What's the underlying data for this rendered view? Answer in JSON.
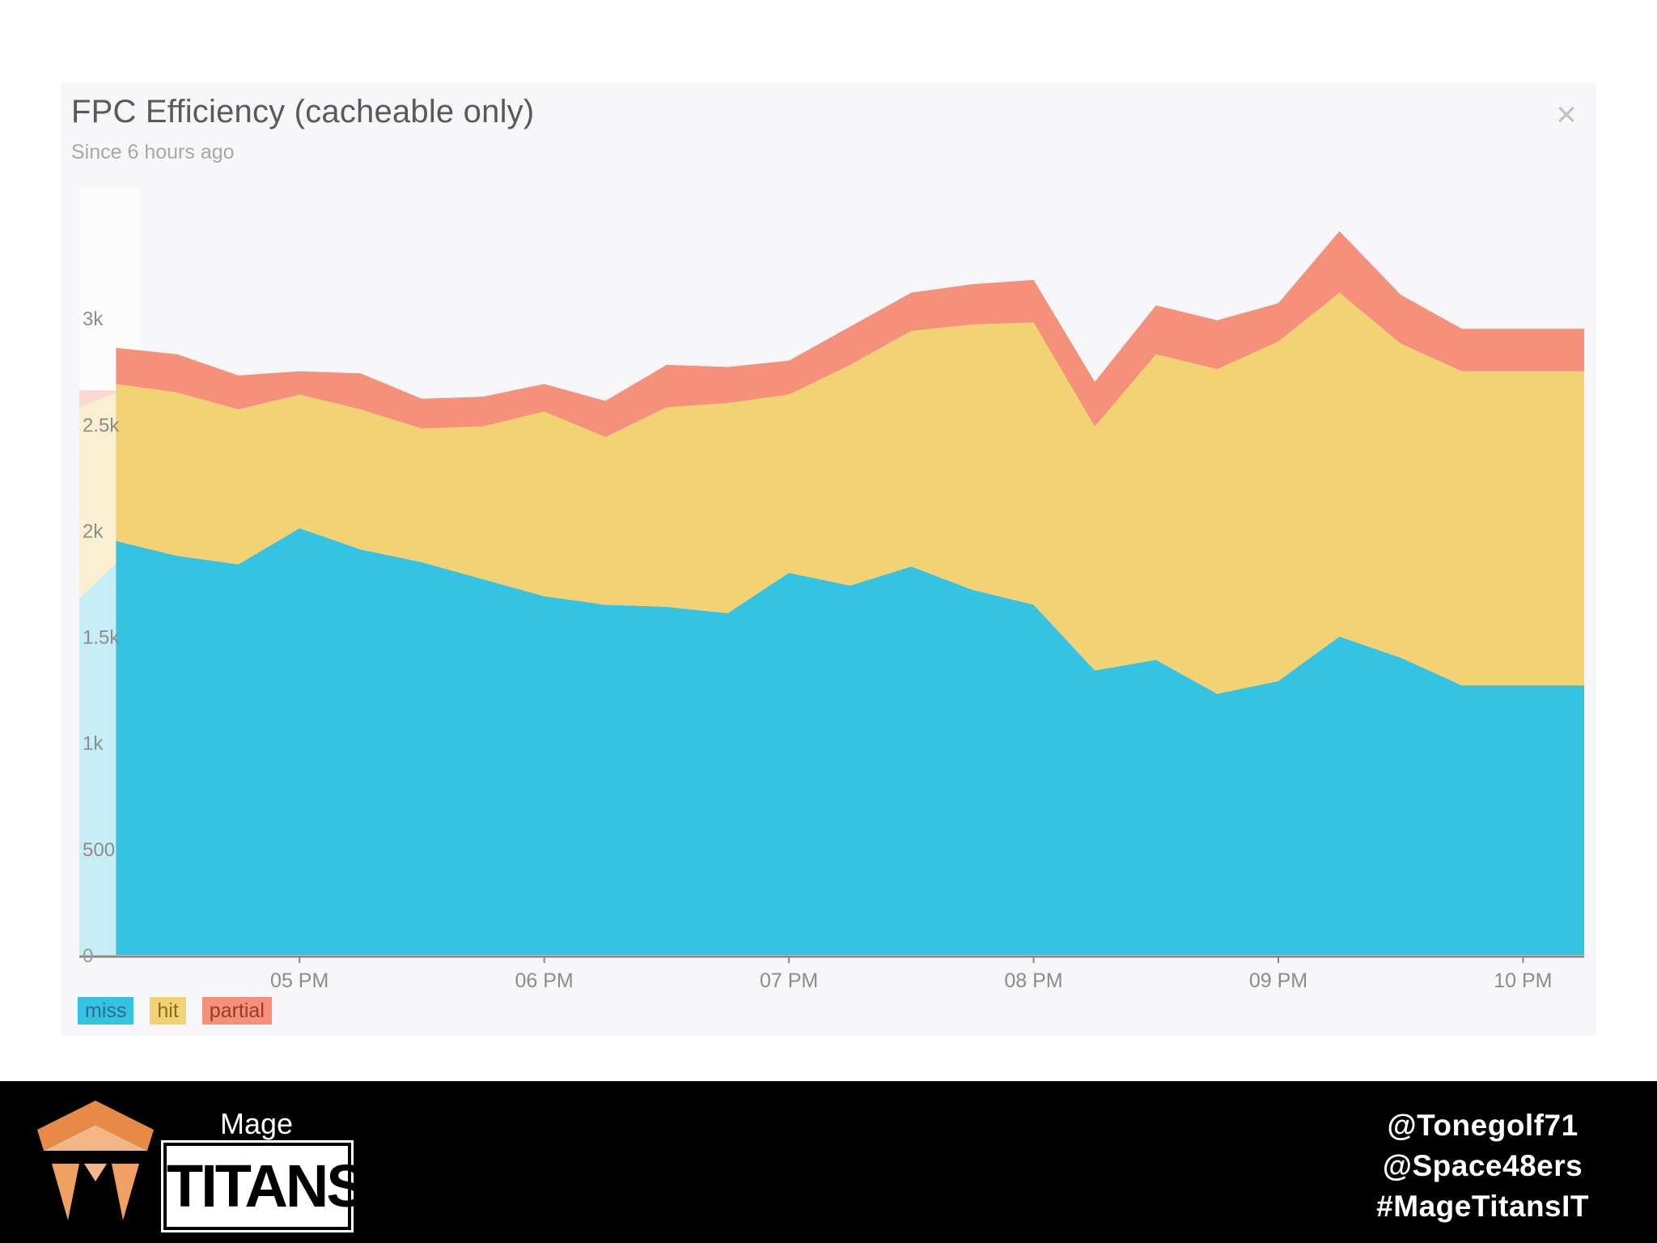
{
  "card": {
    "title": "FPC Efficiency (cacheable only)",
    "subtitle": "Since 6 hours ago",
    "close_glyph": "×"
  },
  "colors": {
    "miss": "#35c3e3",
    "hit": "#f2d272",
    "partial": "#f5907a",
    "axis": "#888888",
    "tick_text": "#8c8c8c"
  },
  "chart_data": {
    "type": "area",
    "stacked": true,
    "title": "FPC Efficiency (cacheable only)",
    "subtitle": "Since 6 hours ago",
    "x": [
      4.25,
      4.5,
      4.75,
      5.0,
      5.25,
      5.5,
      5.75,
      6.0,
      6.25,
      6.5,
      6.75,
      7.0,
      7.25,
      7.5,
      7.75,
      8.0,
      8.25,
      8.5,
      8.75,
      9.0,
      9.25,
      9.5,
      9.75,
      10.0,
      10.25
    ],
    "x_min": 4.1,
    "x_max": 10.25,
    "xticks": [
      {
        "value": 5,
        "label": "05 PM"
      },
      {
        "value": 6,
        "label": "06 PM"
      },
      {
        "value": 7,
        "label": "07 PM"
      },
      {
        "value": 8,
        "label": "08 PM"
      },
      {
        "value": 9,
        "label": "09 PM"
      },
      {
        "value": 10,
        "label": "10 PM"
      }
    ],
    "yticks": [
      {
        "value": 0,
        "label": "0"
      },
      {
        "value": 500,
        "label": "500"
      },
      {
        "value": 1000,
        "label": "1k"
      },
      {
        "value": 1500,
        "label": "1.5k"
      },
      {
        "value": 2000,
        "label": "2k"
      },
      {
        "value": 2500,
        "label": "2.5k"
      },
      {
        "value": 3000,
        "label": "3k"
      }
    ],
    "ylim": [
      0,
      3500
    ],
    "series": [
      {
        "name": "miss",
        "values": [
          1950,
          1880,
          1840,
          2010,
          1910,
          1850,
          1770,
          1690,
          1650,
          1640,
          1610,
          1800,
          1740,
          1830,
          1720,
          1650,
          1340,
          1390,
          1230,
          1290,
          1500,
          1400,
          1270,
          1270,
          1270
        ]
      },
      {
        "name": "hit",
        "values": [
          740,
          770,
          730,
          630,
          660,
          630,
          720,
          870,
          790,
          940,
          990,
          840,
          1040,
          1110,
          1250,
          1330,
          1150,
          1440,
          1530,
          1600,
          1620,
          1480,
          1480,
          1480,
          1480
        ]
      },
      {
        "name": "partial",
        "values": [
          170,
          180,
          160,
          110,
          170,
          140,
          140,
          130,
          170,
          200,
          170,
          160,
          180,
          180,
          190,
          200,
          210,
          230,
          230,
          180,
          290,
          230,
          200,
          200,
          200
        ]
      }
    ],
    "earlier_window_values": {
      "miss": [
        1680,
        1950
      ],
      "hit": [
        900,
        740
      ],
      "partial": [
        80,
        170
      ]
    },
    "legend": [
      "miss",
      "hit",
      "partial"
    ],
    "legend_position": "bottom-left"
  },
  "footer": {
    "brand_top": "Mage",
    "brand_bottom": "TITANS",
    "handles": [
      "@Tonegolf71",
      "@Space48ers",
      "#MageTitansIT"
    ]
  }
}
